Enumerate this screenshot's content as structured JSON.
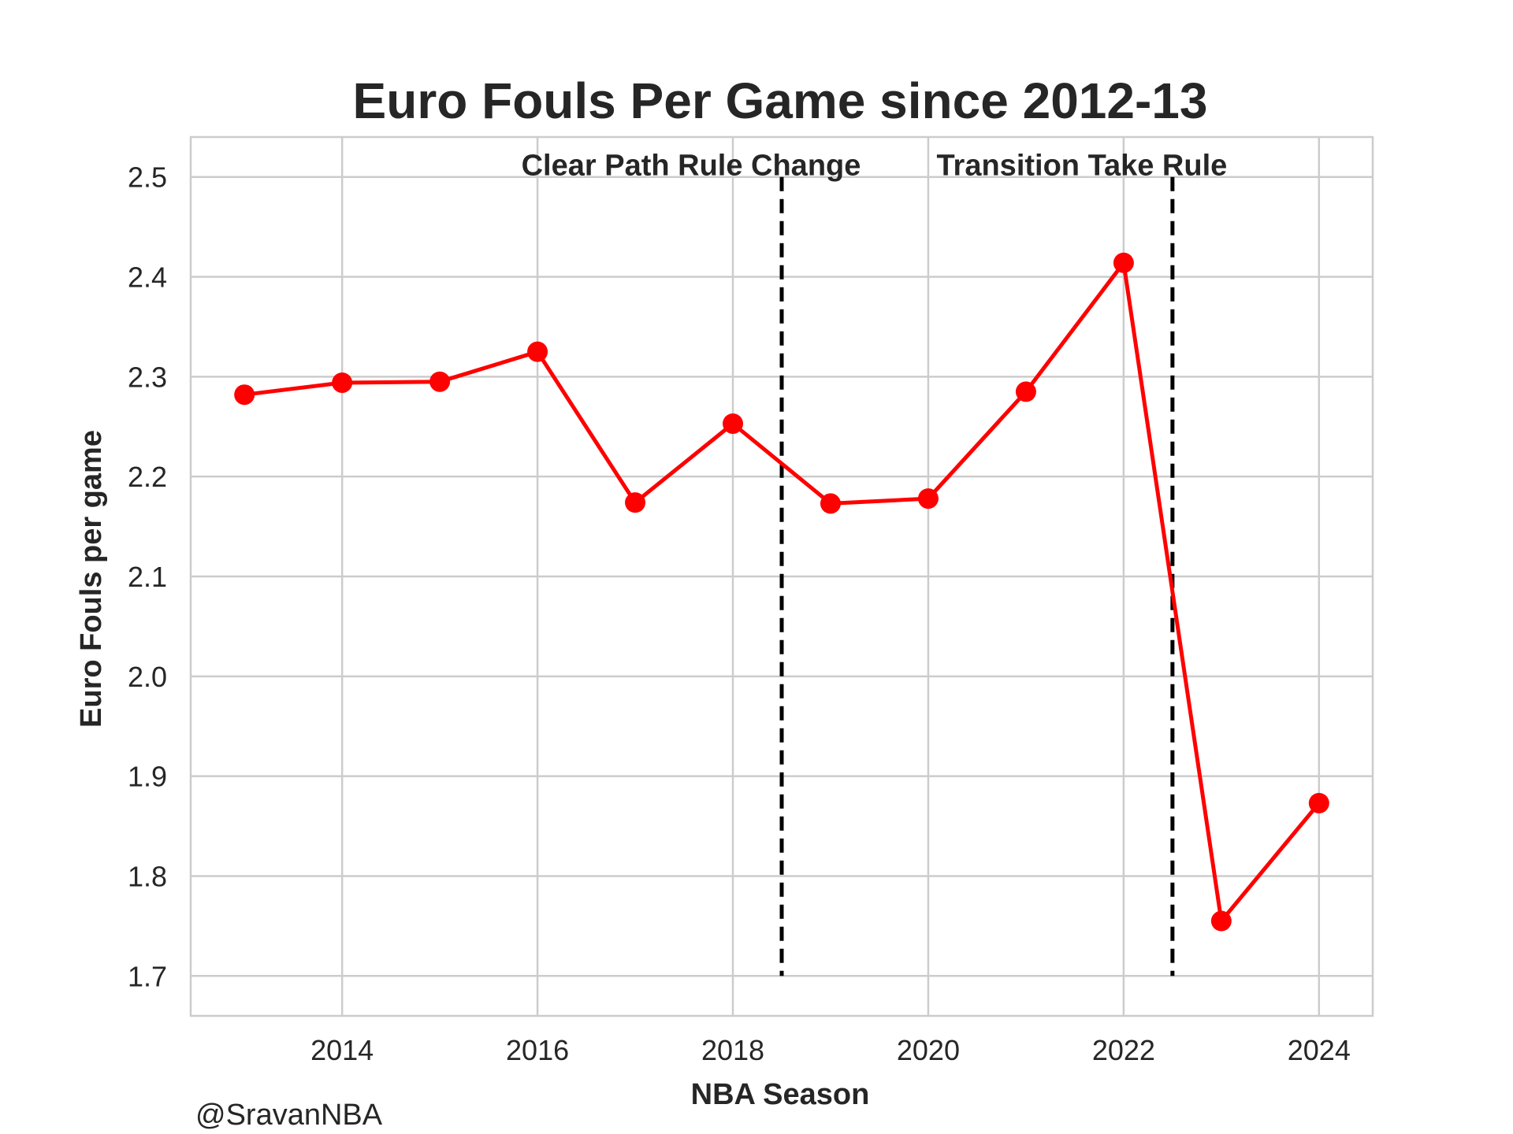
{
  "chart_data": {
    "type": "line",
    "title": "Euro Fouls Per Game since 2012-13",
    "xlabel": "NBA Season",
    "ylabel": "Euro Fouls per game",
    "xlim": [
      2012.45,
      2024.55
    ],
    "ylim": [
      1.66,
      2.54
    ],
    "xticks": [
      2014,
      2016,
      2018,
      2020,
      2022,
      2024
    ],
    "yticks": [
      1.7,
      1.8,
      1.9,
      2.0,
      2.1,
      2.2,
      2.3,
      2.4,
      2.5
    ],
    "grid": true,
    "series": [
      {
        "color": "#ff0000",
        "marker": "circle",
        "x": [
          2013,
          2014,
          2015,
          2016,
          2017,
          2018,
          2019,
          2020,
          2021,
          2022,
          2023,
          2024
        ],
        "y": [
          2.282,
          2.294,
          2.295,
          2.325,
          2.174,
          2.253,
          2.173,
          2.178,
          2.285,
          2.414,
          1.755,
          1.873
        ]
      }
    ],
    "vlines": [
      {
        "x": 2018.5,
        "label": "Clear Path Rule Change",
        "color": "#000000",
        "style": "dashed"
      },
      {
        "x": 2022.5,
        "label": "Transition Take Rule",
        "color": "#000000",
        "style": "dashed"
      }
    ],
    "credit": "@SravanNBA"
  }
}
